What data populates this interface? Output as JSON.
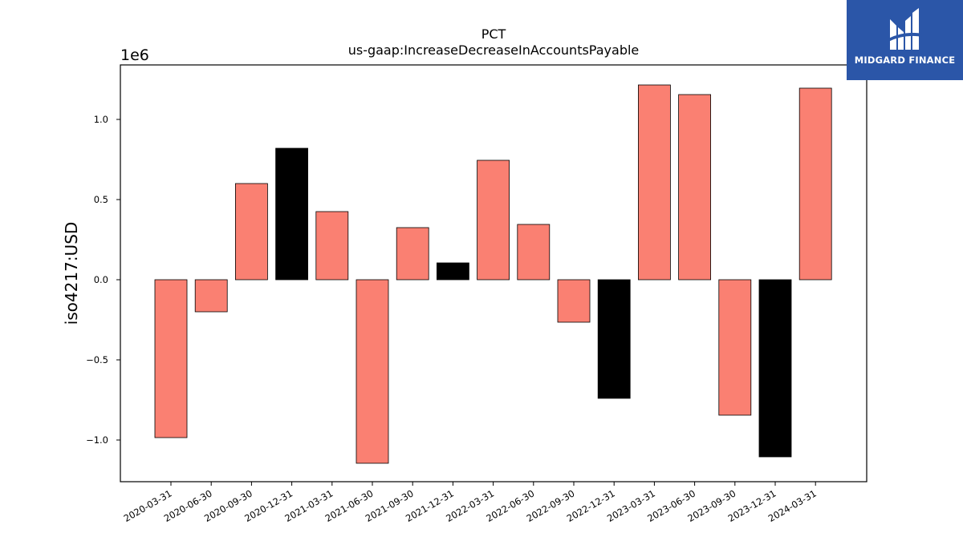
{
  "chart_data": {
    "type": "bar",
    "title": "PCT",
    "subtitle": "us-gaap:IncreaseDecreaseInAccountsPayable",
    "xlabel": "",
    "ylabel": "iso4217:USD",
    "offset_label": "1e6",
    "ylim": [
      -1.26,
      1.34
    ],
    "yticks": [
      -1.0,
      -0.5,
      0.0,
      0.5,
      1.0
    ],
    "ytick_labels": [
      "−1.0",
      "−0.5",
      "0.0",
      "0.5",
      "1.0"
    ],
    "grid": false,
    "categories": [
      "2020-03-31",
      "2020-06-30",
      "2020-09-30",
      "2020-12-31",
      "2021-03-31",
      "2021-06-30",
      "2021-09-30",
      "2021-12-31",
      "2022-03-31",
      "2022-06-30",
      "2022-09-30",
      "2022-12-31",
      "2023-03-31",
      "2023-06-30",
      "2023-09-30",
      "2023-12-31",
      "2024-03-31"
    ],
    "values": [
      -0.985,
      -0.2,
      0.6,
      0.82,
      0.425,
      -1.145,
      0.325,
      0.105,
      0.745,
      0.345,
      -0.265,
      -0.74,
      1.215,
      1.155,
      -0.845,
      -1.105,
      1.195
    ],
    "bar_colors": [
      "#fa8072",
      "#fa8072",
      "#fa8072",
      "#000000",
      "#fa8072",
      "#fa8072",
      "#fa8072",
      "#000000",
      "#fa8072",
      "#fa8072",
      "#fa8072",
      "#000000",
      "#fa8072",
      "#fa8072",
      "#fa8072",
      "#000000",
      "#fa8072"
    ]
  },
  "logo": {
    "text": "MIDGARD FINANCE",
    "background": "#2b56a8",
    "icon": "midgard-logo-mark"
  }
}
